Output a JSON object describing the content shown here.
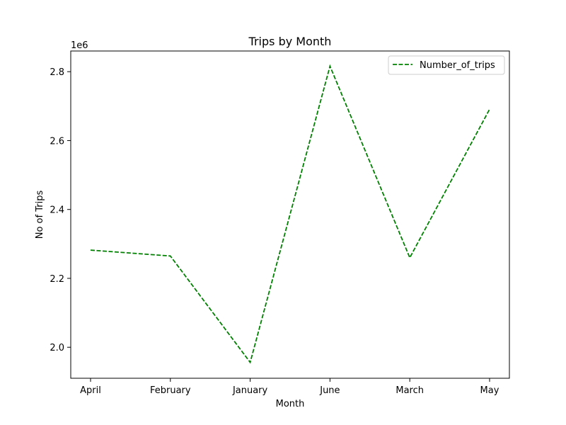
{
  "chart_data": {
    "type": "line",
    "title": "Trips by Month",
    "xlabel": "Month",
    "ylabel": "No of Trips",
    "y_offset_label": "1e6",
    "categories": [
      "April",
      "February",
      "January",
      "June",
      "March",
      "May"
    ],
    "series": [
      {
        "name": "Number_of_trips",
        "values": [
          2282000,
          2265000,
          1956000,
          2816000,
          2260000,
          2691000
        ],
        "color": "#008000",
        "line_style": "dashed"
      }
    ],
    "ylim": [
      1910000,
      2860000
    ],
    "yticks": [
      2000000,
      2200000,
      2400000,
      2600000,
      2800000
    ],
    "ytick_labels": [
      "2.0",
      "2.2",
      "2.4",
      "2.6",
      "2.8"
    ],
    "grid": false,
    "legend_position": "top-right"
  }
}
